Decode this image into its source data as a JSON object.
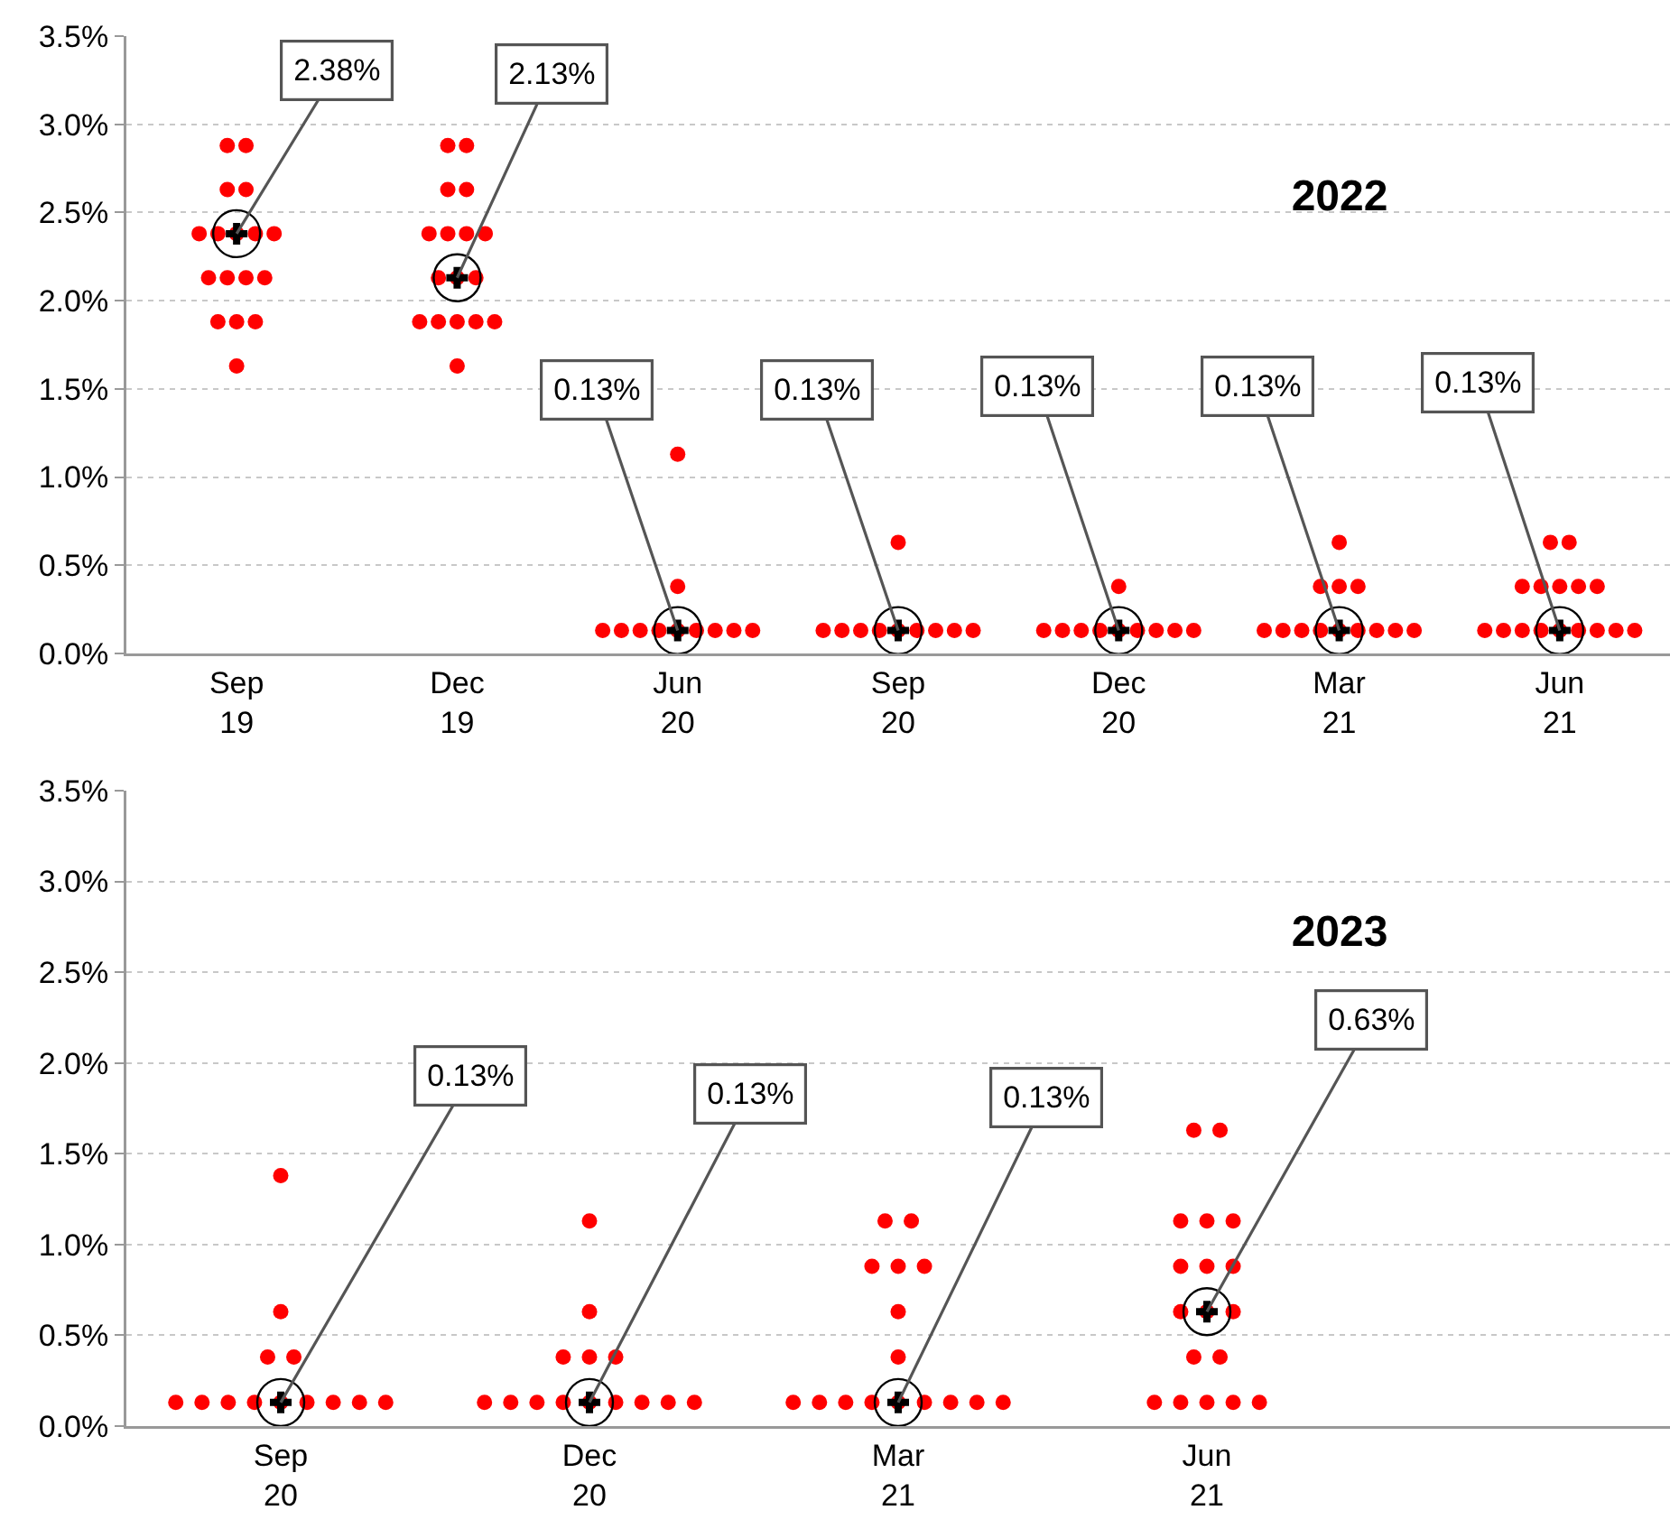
{
  "chart_data": [
    {
      "type": "scatter",
      "title": "2022",
      "categories": [
        "Sep\n19",
        "Dec\n19",
        "Jun\n20",
        "Sep\n20",
        "Dec\n20",
        "Mar\n21",
        "Jun\n21"
      ],
      "ylim": [
        0,
        3.5
      ],
      "yticks": [
        {
          "value": 0,
          "label": "0.0%"
        },
        {
          "value": 0.5,
          "label": "0.5%"
        },
        {
          "value": 1,
          "label": "1.0%"
        },
        {
          "value": 1.5,
          "label": "1.5%"
        },
        {
          "value": 2,
          "label": "2.0%"
        },
        {
          "value": 2.5,
          "label": "2.5%"
        },
        {
          "value": 3,
          "label": "3.0%"
        },
        {
          "value": 3.5,
          "label": "3.5%"
        }
      ],
      "grid": "y",
      "series": [
        {
          "color": "#ff0000",
          "marker": "circle",
          "x": [
            "Sep\n19",
            "Sep\n19",
            "Sep\n19",
            "Sep\n19",
            "Sep\n19",
            "Sep\n19",
            "Sep\n19",
            "Sep\n19",
            "Sep\n19",
            "Sep\n19",
            "Sep\n19",
            "Sep\n19",
            "Sep\n19",
            "Sep\n19",
            "Sep\n19",
            "Sep\n19",
            "Sep\n19",
            "Dec\n19",
            "Dec\n19",
            "Dec\n19",
            "Dec\n19",
            "Dec\n19",
            "Dec\n19",
            "Dec\n19",
            "Dec\n19",
            "Dec\n19",
            "Dec\n19",
            "Dec\n19",
            "Dec\n19",
            "Dec\n19",
            "Dec\n19",
            "Dec\n19",
            "Dec\n19",
            "Dec\n19",
            "Jun\n20",
            "Jun\n20",
            "Jun\n20",
            "Jun\n20",
            "Jun\n20",
            "Jun\n20",
            "Jun\n20",
            "Jun\n20",
            "Jun\n20",
            "Jun\n20",
            "Jun\n20",
            "Sep\n20",
            "Sep\n20",
            "Sep\n20",
            "Sep\n20",
            "Sep\n20",
            "Sep\n20",
            "Sep\n20",
            "Sep\n20",
            "Sep\n20",
            "Sep\n20",
            "Dec\n20",
            "Dec\n20",
            "Dec\n20",
            "Dec\n20",
            "Dec\n20",
            "Dec\n20",
            "Dec\n20",
            "Dec\n20",
            "Dec\n20",
            "Dec\n20",
            "Mar\n21",
            "Mar\n21",
            "Mar\n21",
            "Mar\n21",
            "Mar\n21",
            "Mar\n21",
            "Mar\n21",
            "Mar\n21",
            "Mar\n21",
            "Mar\n21",
            "Mar\n21",
            "Mar\n21",
            "Mar\n21",
            "Jun\n21",
            "Jun\n21",
            "Jun\n21",
            "Jun\n21",
            "Jun\n21",
            "Jun\n21",
            "Jun\n21",
            "Jun\n21",
            "Jun\n21",
            "Jun\n21",
            "Jun\n21",
            "Jun\n21",
            "Jun\n21",
            "Jun\n21",
            "Jun\n21",
            "Jun\n21"
          ],
          "values": [
            2.88,
            2.88,
            2.63,
            2.63,
            2.38,
            2.38,
            2.38,
            2.38,
            2.38,
            2.13,
            2.13,
            2.13,
            2.13,
            1.88,
            1.88,
            1.88,
            1.63,
            2.88,
            2.88,
            2.63,
            2.63,
            2.38,
            2.38,
            2.38,
            2.38,
            2.13,
            2.13,
            2.13,
            1.88,
            1.88,
            1.88,
            1.88,
            1.88,
            1.63,
            1.13,
            0.38,
            0.13,
            0.13,
            0.13,
            0.13,
            0.13,
            0.13,
            0.13,
            0.13,
            0.13,
            0.63,
            0.13,
            0.13,
            0.13,
            0.13,
            0.13,
            0.13,
            0.13,
            0.13,
            0.13,
            0.38,
            0.13,
            0.13,
            0.13,
            0.13,
            0.13,
            0.13,
            0.13,
            0.13,
            0.13,
            0.63,
            0.38,
            0.38,
            0.38,
            0.13,
            0.13,
            0.13,
            0.13,
            0.13,
            0.13,
            0.13,
            0.13,
            0.13,
            0.63,
            0.63,
            0.38,
            0.38,
            0.38,
            0.38,
            0.38,
            0.13,
            0.13,
            0.13,
            0.13,
            0.13,
            0.13,
            0.13,
            0.13,
            0.13
          ]
        },
        {
          "color": "#000000",
          "marker": "cross",
          "x": [
            "Sep\n19",
            "Dec\n19",
            "Jun\n20",
            "Sep\n20",
            "Dec\n20",
            "Mar\n21",
            "Jun\n21"
          ],
          "values": [
            2.38,
            2.13,
            0.13,
            0.13,
            0.13,
            0.13,
            0.13
          ]
        }
      ],
      "annotations": [
        {
          "text": "2.38%",
          "x": "Sep\n19",
          "y": 2.38
        },
        {
          "text": "2.13%",
          "x": "Dec\n19",
          "y": 2.13
        },
        {
          "text": "0.13%",
          "x": "Jun\n20",
          "y": 0.13
        },
        {
          "text": "0.13%",
          "x": "Sep\n20",
          "y": 0.13
        },
        {
          "text": "0.13%",
          "x": "Dec\n20",
          "y": 0.13
        },
        {
          "text": "0.13%",
          "x": "Mar\n21",
          "y": 0.13
        },
        {
          "text": "0.13%",
          "x": "Jun\n21",
          "y": 0.13
        }
      ]
    },
    {
      "type": "scatter",
      "title": "2023",
      "categories": [
        "Sep\n20",
        "Dec\n20",
        "Mar\n21",
        "Jun\n21",
        null
      ],
      "ylim": [
        0,
        3.5
      ],
      "yticks": [
        {
          "value": 0,
          "label": "0.0%"
        },
        {
          "value": 0.5,
          "label": "0.5%"
        },
        {
          "value": 1,
          "label": "1.0%"
        },
        {
          "value": 1.5,
          "label": "1.5%"
        },
        {
          "value": 2,
          "label": "2.0%"
        },
        {
          "value": 2.5,
          "label": "2.5%"
        },
        {
          "value": 3,
          "label": "3.0%"
        },
        {
          "value": 3.5,
          "label": "3.5%"
        }
      ],
      "grid": "y",
      "series": [
        {
          "color": "#ff0000",
          "marker": "circle",
          "x": [
            "Sep\n20",
            "Sep\n20",
            "Sep\n20",
            "Sep\n20",
            "Sep\n20",
            "Sep\n20",
            "Sep\n20",
            "Sep\n20",
            "Sep\n20",
            "Sep\n20",
            "Sep\n20",
            "Sep\n20",
            "Sep\n20",
            "Dec\n20",
            "Dec\n20",
            "Dec\n20",
            "Dec\n20",
            "Dec\n20",
            "Dec\n20",
            "Dec\n20",
            "Dec\n20",
            "Dec\n20",
            "Dec\n20",
            "Dec\n20",
            "Dec\n20",
            "Dec\n20",
            "Dec\n20",
            "Mar\n21",
            "Mar\n21",
            "Mar\n21",
            "Mar\n21",
            "Mar\n21",
            "Mar\n21",
            "Mar\n21",
            "Mar\n21",
            "Mar\n21",
            "Mar\n21",
            "Mar\n21",
            "Mar\n21",
            "Mar\n21",
            "Mar\n21",
            "Mar\n21",
            "Mar\n21",
            "Jun\n21",
            "Jun\n21",
            "Jun\n21",
            "Jun\n21",
            "Jun\n21",
            "Jun\n21",
            "Jun\n21",
            "Jun\n21",
            "Jun\n21",
            "Jun\n21",
            "Jun\n21",
            "Jun\n21",
            "Jun\n21",
            "Jun\n21",
            "Jun\n21",
            "Jun\n21",
            "Jun\n21",
            "Jun\n21"
          ],
          "values": [
            1.38,
            0.63,
            0.38,
            0.38,
            0.13,
            0.13,
            0.13,
            0.13,
            0.13,
            0.13,
            0.13,
            0.13,
            0.13,
            1.13,
            0.63,
            0.38,
            0.38,
            0.38,
            0.13,
            0.13,
            0.13,
            0.13,
            0.13,
            0.13,
            0.13,
            0.13,
            0.13,
            1.13,
            1.13,
            0.88,
            0.88,
            0.88,
            0.63,
            0.38,
            0.13,
            0.13,
            0.13,
            0.13,
            0.13,
            0.13,
            0.13,
            0.13,
            0.13,
            1.63,
            1.63,
            1.13,
            1.13,
            1.13,
            0.88,
            0.88,
            0.88,
            0.63,
            0.63,
            0.63,
            0.38,
            0.38,
            0.13,
            0.13,
            0.13,
            0.13,
            0.13
          ]
        },
        {
          "color": "#000000",
          "marker": "cross",
          "x": [
            "Sep\n20",
            "Dec\n20",
            "Mar\n21",
            "Jun\n21"
          ],
          "values": [
            0.13,
            0.13,
            0.13,
            0.63
          ]
        }
      ],
      "annotations": [
        {
          "text": "0.13%",
          "x": "Sep\n20",
          "y": 0.13
        },
        {
          "text": "0.13%",
          "x": "Dec\n20",
          "y": 0.13
        },
        {
          "text": "0.13%",
          "x": "Mar\n21",
          "y": 0.13
        },
        {
          "text": "0.63%",
          "x": "Jun\n21",
          "y": 0.63
        }
      ]
    }
  ]
}
